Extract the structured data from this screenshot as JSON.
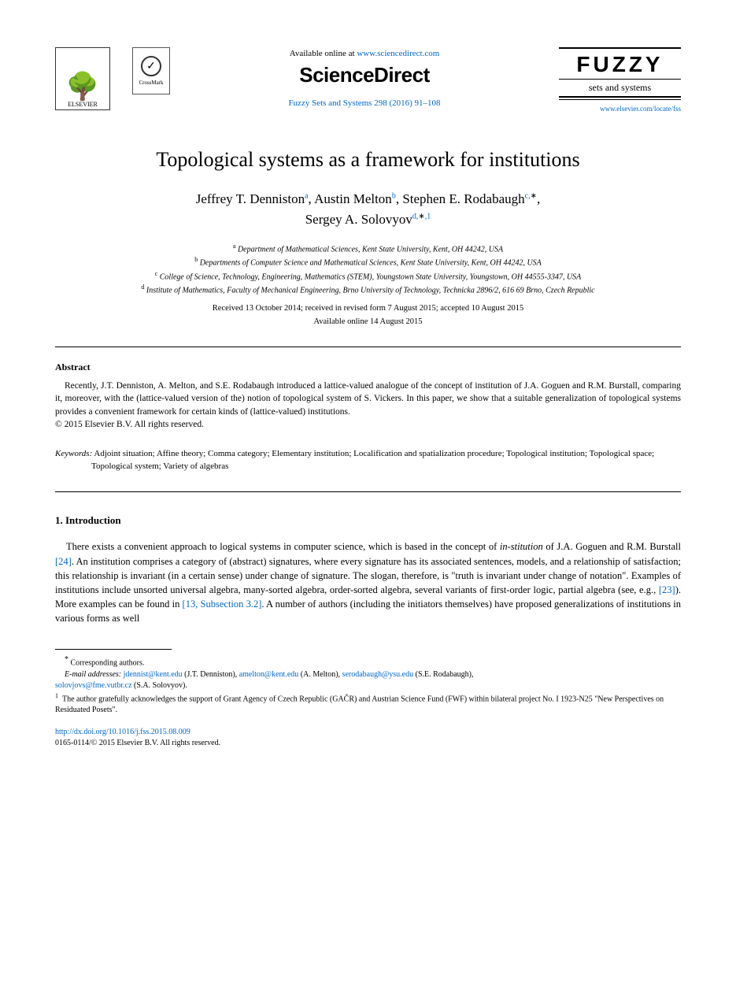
{
  "header": {
    "elsevier_label": "ELSEVIER",
    "crossmark_label": "CrossMark",
    "available_prefix": "Available online at ",
    "available_url": "www.sciencedirect.com",
    "sciencedirect": "ScienceDirect",
    "journal_ref": "Fuzzy Sets and Systems 298 (2016) 91–108",
    "fuzzy_title": "FUZZY",
    "fuzzy_sub": "sets and systems",
    "journal_url": "www.elsevier.com/locate/fss"
  },
  "title": "Topological systems as a framework for institutions",
  "authors": {
    "a1_name": "Jeffrey T. Denniston",
    "a1_sup": "a",
    "a2_name": "Austin Melton",
    "a2_sup": "b",
    "a3_name": "Stephen E. Rodabaugh",
    "a3_sup": "c,",
    "a3_corr": "∗",
    "a4_name": "Sergey A. Solovyov",
    "a4_sup": "d,",
    "a4_corr": "∗",
    "a4_note": ",1"
  },
  "affiliations": {
    "a": "Department of Mathematical Sciences, Kent State University, Kent, OH 44242, USA",
    "b": "Departments of Computer Science and Mathematical Sciences, Kent State University, Kent, OH 44242, USA",
    "c": "College of Science, Technology, Engineering, Mathematics (STEM), Youngstown State University, Youngstown, OH 44555-3347, USA",
    "d": "Institute of Mathematics, Faculty of Mechanical Engineering, Brno University of Technology, Technicka 2896/2, 616 69 Brno, Czech Republic"
  },
  "dates": {
    "history": "Received 13 October 2014; received in revised form 7 August 2015; accepted 10 August 2015",
    "online": "Available online 14 August 2015"
  },
  "abstract": {
    "heading": "Abstract",
    "text": "Recently, J.T. Denniston, A. Melton, and S.E. Rodabaugh introduced a lattice-valued analogue of the concept of institution of J.A. Goguen and R.M. Burstall, comparing it, moreover, with the (lattice-valued version of the) notion of topological system of S. Vickers. In this paper, we show that a suitable generalization of topological systems provides a convenient framework for certain kinds of (lattice-valued) institutions.",
    "copyright": "© 2015 Elsevier B.V. All rights reserved."
  },
  "keywords": {
    "label": "Keywords:",
    "text": " Adjoint situation; Affine theory; Comma category; Elementary institution; Localification and spatialization procedure; Topological institution; Topological space; Topological system; Variety of algebras"
  },
  "section1": {
    "heading": "1.  Introduction",
    "p1a": "There exists a convenient approach to logical systems in computer science, which is based in the concept of ",
    "p1_em1": "in-stitution",
    "p1b": " of J.A. Goguen and R.M. Burstall ",
    "p1_cite1": "[24]",
    "p1c": ". An institution comprises a category of (abstract) signatures, where every signature has its associated sentences, models, and a relationship of satisfaction; this relationship is invariant (in a certain sense) under change of signature. The slogan, therefore, is \"truth is invariant under change of notation\". Examples of institutions include unsorted universal algebra, many-sorted algebra, order-sorted algebra, several variants of first-order logic, partial algebra (see, e.g., ",
    "p1_cite2": "[23]",
    "p1d": "). More examples can be found in ",
    "p1_cite3": "[13, Subsection 3.2]",
    "p1e": ". A number of authors (including the initiators themselves) have proposed generalizations of institutions in various forms as well"
  },
  "footnotes": {
    "corr_label": "Corresponding authors.",
    "email_label": "E-mail addresses:",
    "e1": "jdennist@kent.edu",
    "e1_who": " (J.T. Denniston), ",
    "e2": "amelton@kent.edu",
    "e2_who": " (A. Melton), ",
    "e3": "serodabaugh@ysu.edu",
    "e3_who": " (S.E. Rodabaugh), ",
    "e4": "solovjovs@fme.vutbr.cz",
    "e4_who": " (S.A. Solovyov).",
    "note1": "The author gratefully acknowledges the support of Grant Agency of Czech Republic (GAČR) and Austrian Science Fund (FWF) within bilateral project No. I 1923-N25 \"New Perspectives on Residuated Posets\"."
  },
  "doi": {
    "url": "http://dx.doi.org/10.1016/j.fss.2015.08.009",
    "issn_line": "0165-0114/© 2015 Elsevier B.V. All rights reserved."
  }
}
